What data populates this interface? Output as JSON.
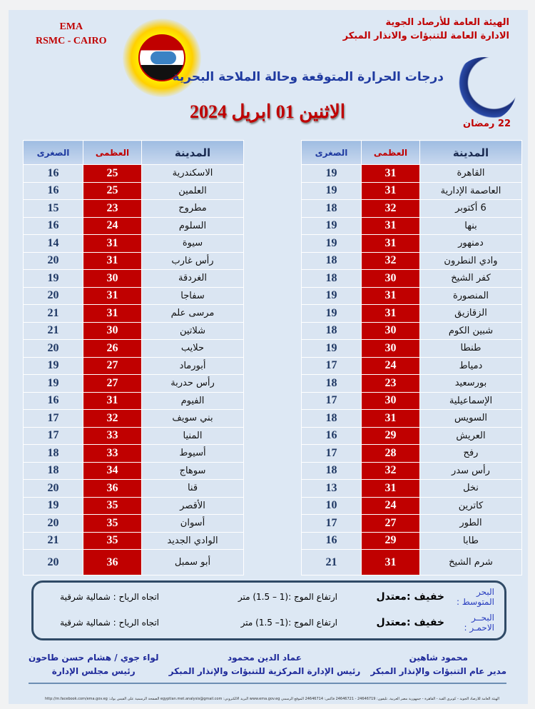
{
  "header": {
    "org_line1": "الهيئة العامة للأرصاد الجوية",
    "org_line2": "الادارة العامة للتنبؤات والانذار المبكر",
    "ema": "EMA",
    "rsmc": "RSMC - CAIRO",
    "subtitle": "درجات الحرارة المتوقعة وحالة الملاحة البحرية",
    "date": "الاثنين 01 ابريل 2024",
    "ramadan": "22 رمضان"
  },
  "columns": {
    "city": "المدينة",
    "max": "العظمى",
    "min": "الصغرى"
  },
  "right_table": [
    [
      "القاهرة",
      31,
      19
    ],
    [
      "العاصمة الإدارية",
      31,
      19
    ],
    [
      "6 أكتوبر",
      32,
      18
    ],
    [
      "بنها",
      31,
      19
    ],
    [
      "دمنهور",
      31,
      19
    ],
    [
      "وادي النطرون",
      32,
      18
    ],
    [
      "كفر الشيخ",
      30,
      18
    ],
    [
      "المنصورة",
      31,
      19
    ],
    [
      "الزقازيق",
      31,
      19
    ],
    [
      "شبين الكوم",
      30,
      18
    ],
    [
      "طنطا",
      30,
      19
    ],
    [
      "دمياط",
      24,
      17
    ],
    [
      "بورسعيد",
      23,
      18
    ],
    [
      "الإسماعيلية",
      30,
      17
    ],
    [
      "السويس",
      31,
      18
    ],
    [
      "العريش",
      29,
      16
    ],
    [
      "رفح",
      28,
      17
    ],
    [
      "رأس سدر",
      32,
      18
    ],
    [
      "نخل",
      31,
      13
    ],
    [
      "كاترين",
      24,
      10
    ],
    [
      "الطور",
      27,
      17
    ],
    [
      "طابا",
      29,
      16
    ],
    [
      "شرم الشيخ",
      31,
      21
    ]
  ],
  "left_table": [
    [
      "الاسكندرية",
      25,
      16
    ],
    [
      "العلمين",
      25,
      16
    ],
    [
      "مطروح",
      23,
      15
    ],
    [
      "السلوم",
      24,
      16
    ],
    [
      "سيوة",
      31,
      14
    ],
    [
      "رأس غارب",
      31,
      20
    ],
    [
      "الغردقة",
      30,
      19
    ],
    [
      "سفاجا",
      31,
      20
    ],
    [
      "مرسى علم",
      31,
      21
    ],
    [
      "شلاتين",
      30,
      21
    ],
    [
      "حلايب",
      26,
      20
    ],
    [
      "أبورماد",
      27,
      19
    ],
    [
      "رأس حدربة",
      27,
      19
    ],
    [
      "الفيوم",
      31,
      16
    ],
    [
      "بني سويف",
      32,
      17
    ],
    [
      "المنيا",
      33,
      17
    ],
    [
      "أسيوط",
      33,
      18
    ],
    [
      "سوهاج",
      34,
      18
    ],
    [
      "قنا",
      36,
      20
    ],
    [
      "الأقصر",
      35,
      19
    ],
    [
      "أسوان",
      35,
      20
    ],
    [
      "الوادي الجديد",
      35,
      21
    ],
    [
      "أبو سمبل",
      36,
      20
    ]
  ],
  "sea": [
    {
      "name": "البحر المتوسط :",
      "state": "خفيف :معتدل",
      "wave": "ارتفاع الموج :(1 – 1.5) متر",
      "wind": "اتجاه الرياح : شمالية شرقية"
    },
    {
      "name": "البحــر الاحمـر :",
      "state": "خفيف :معتدل",
      "wave": "ارتفاع الموج :(1– 1.5) متر",
      "wind": "اتجاه الرياح : شمالية شرقية"
    }
  ],
  "signatures": [
    {
      "name": "محمود شاهين",
      "title": "مدير عام التنبؤات والإنذار المبكر"
    },
    {
      "name": "عماد الدين محمود",
      "title": "رئيس الإدارة المركزية للتنبؤات والإنذار المبكر"
    },
    {
      "name": "لواء جوي / هشام حسن طاحون",
      "title": "رئيس مجلس الإدارة"
    }
  ],
  "footer": "الهيئة العامة للأرصاد الجوية - كوبري القبة - القاهرة - جمهورية مصر العربية. تليفون: 24646719 - 24646721 فاكس: 24646714 الموقع الرسمي www.ema.gov.eg البريد الالكتروني: egyptian.met.analysis@gmail.com الصفحة الرسمية على الفيس بوك: http://m.facebook.com/ema.gov.eg"
}
